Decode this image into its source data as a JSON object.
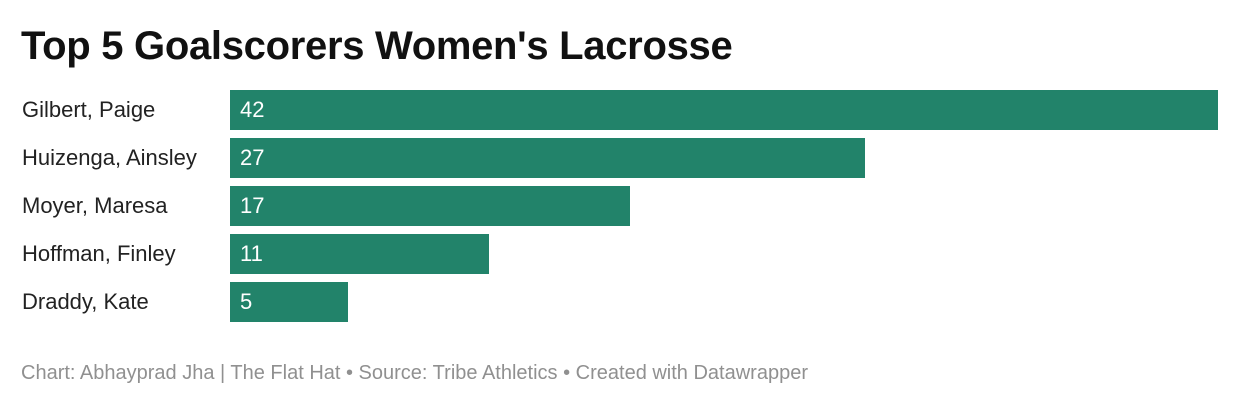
{
  "chart_data": {
    "type": "bar",
    "orientation": "horizontal",
    "title": "Top 5 Goalscorers Women's Lacrosse",
    "categories": [
      "Gilbert, Paige",
      "Huizenga, Ainsley",
      "Moyer, Maresa",
      "Hoffman, Finley",
      "Draddy, Kate"
    ],
    "values": [
      42,
      27,
      17,
      11,
      5
    ],
    "xlim": [
      0,
      42
    ],
    "grid": false,
    "legend": "none",
    "bar_color": "#22836a"
  },
  "footer": {
    "credit": "Chart: Abhayprad Jha | The Flat Hat • Source: Tribe Athletics • Created with Datawrapper"
  }
}
